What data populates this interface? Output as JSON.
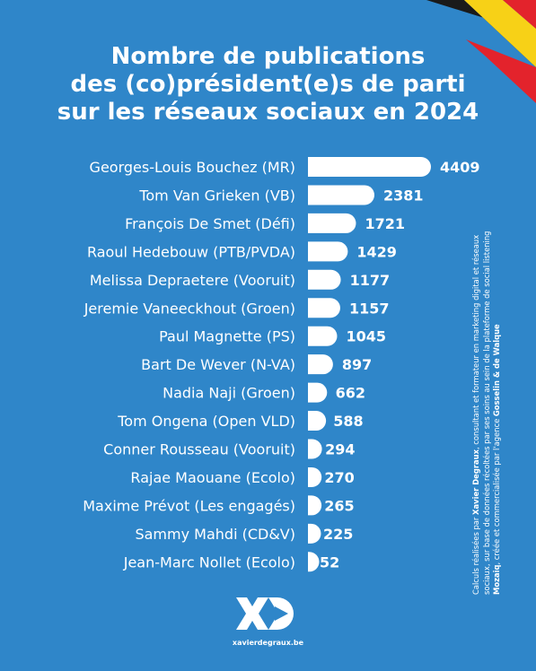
{
  "title_lines": [
    "Nombre de publications",
    "des (co)président(e)s de parti",
    "sur les réseaux sociaux en 2024"
  ],
  "chart_data": {
    "type": "bar",
    "orientation": "horizontal",
    "title": "Nombre de publications des (co)président(e)s de parti sur les réseaux sociaux en 2024",
    "categories": [
      "Georges-Louis Bouchez (MR)",
      "Tom Van Grieken (VB)",
      "François De Smet (Défi)",
      "Raoul Hedebouw (PTB/PVDA)",
      "Melissa Depraetere (Vooruit)",
      "Jeremie Vaneeckhout (Groen)",
      "Paul Magnette (PS)",
      "Bart De Wever (N-VA)",
      "Nadia Naji (Groen)",
      "Tom Ongena (Open VLD)",
      "Conner Rousseau (Vooruit)",
      "Rajae Maouane (Ecolo)",
      "Maxime Prévot (Les engagés)",
      "Sammy Mahdi (CD&V)",
      "Jean-Marc Nollet (Ecolo)"
    ],
    "values": [
      4409,
      2381,
      1721,
      1429,
      1177,
      1157,
      1045,
      897,
      662,
      588,
      294,
      270,
      265,
      225,
      52
    ],
    "value_labels": [
      "4409",
      "2381",
      "1721",
      "1429",
      "1177",
      "1157",
      "1045",
      "897",
      "662",
      "588",
      "294",
      "270",
      "265",
      "225",
      "52"
    ],
    "xlim": [
      0,
      4409
    ],
    "grid": false,
    "bar_color": "#ffffff"
  },
  "note": {
    "p1": "Calculs réalisées par ",
    "author": "Xavier Degraux",
    "p2": ", consultant et formateur en marketing digital et réseaux sociaux, sur base de données récoltées par ses soins au sein de la plateforme de social listening ",
    "platform": "Mozaiq",
    "p3": ", créée et commercialisée par l'agence ",
    "agency": "Gosselin & de Walque"
  },
  "footer": {
    "website": "xavierdegraux.be"
  },
  "icons": {
    "logo": "xd-logo-icon",
    "flag": "belgian-flag-icon"
  },
  "colors": {
    "background": "#2f86c9",
    "bar": "#ffffff",
    "flag_black": "#1a1a1a",
    "flag_yellow": "#f7d117",
    "flag_red": "#e3232c"
  }
}
